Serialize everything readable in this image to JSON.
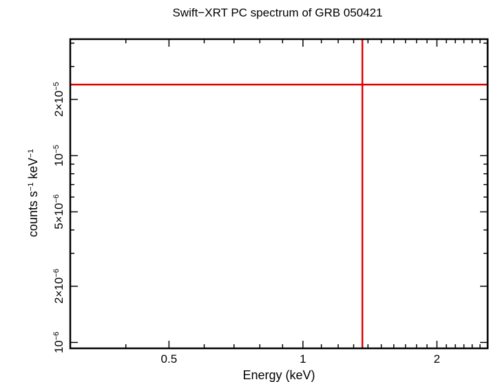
{
  "chart_data": {
    "type": "scatter",
    "title": "Swift−XRT PC spectrum of GRB 050421",
    "xlabel": "Energy (keV)",
    "ylabel": {
      "text": "counts s",
      "sup1": "−1",
      "mid": " keV",
      "sup2": "−1"
    },
    "x_scale": "log",
    "y_scale": "log",
    "xlim": [
      0.3,
      2.6
    ],
    "ylim": [
      9.3e-07,
      4.2e-05
    ],
    "x_ticks": [
      {
        "value": 0.5,
        "label": "0.5"
      },
      {
        "value": 1,
        "label": "1"
      },
      {
        "value": 2,
        "label": "2"
      }
    ],
    "y_ticks": [
      {
        "value": 1e-06,
        "mantissa": "",
        "exponent": "−6"
      },
      {
        "value": 2e-06,
        "mantissa": "2×",
        "exponent": "−6"
      },
      {
        "value": 5e-06,
        "mantissa": "5×",
        "exponent": "−6"
      },
      {
        "value": 1e-05,
        "mantissa": "",
        "exponent": "−5"
      },
      {
        "value": 2e-05,
        "mantissa": "2×",
        "exponent": "−5"
      }
    ],
    "series": [
      {
        "color": "#e00000",
        "points": [
          {
            "x": 1.36,
            "y": 2.4e-05,
            "x_err": [
              0.3,
              2.6
            ],
            "y_err": [
              9.3e-07,
              4.2e-05
            ]
          }
        ]
      }
    ]
  }
}
